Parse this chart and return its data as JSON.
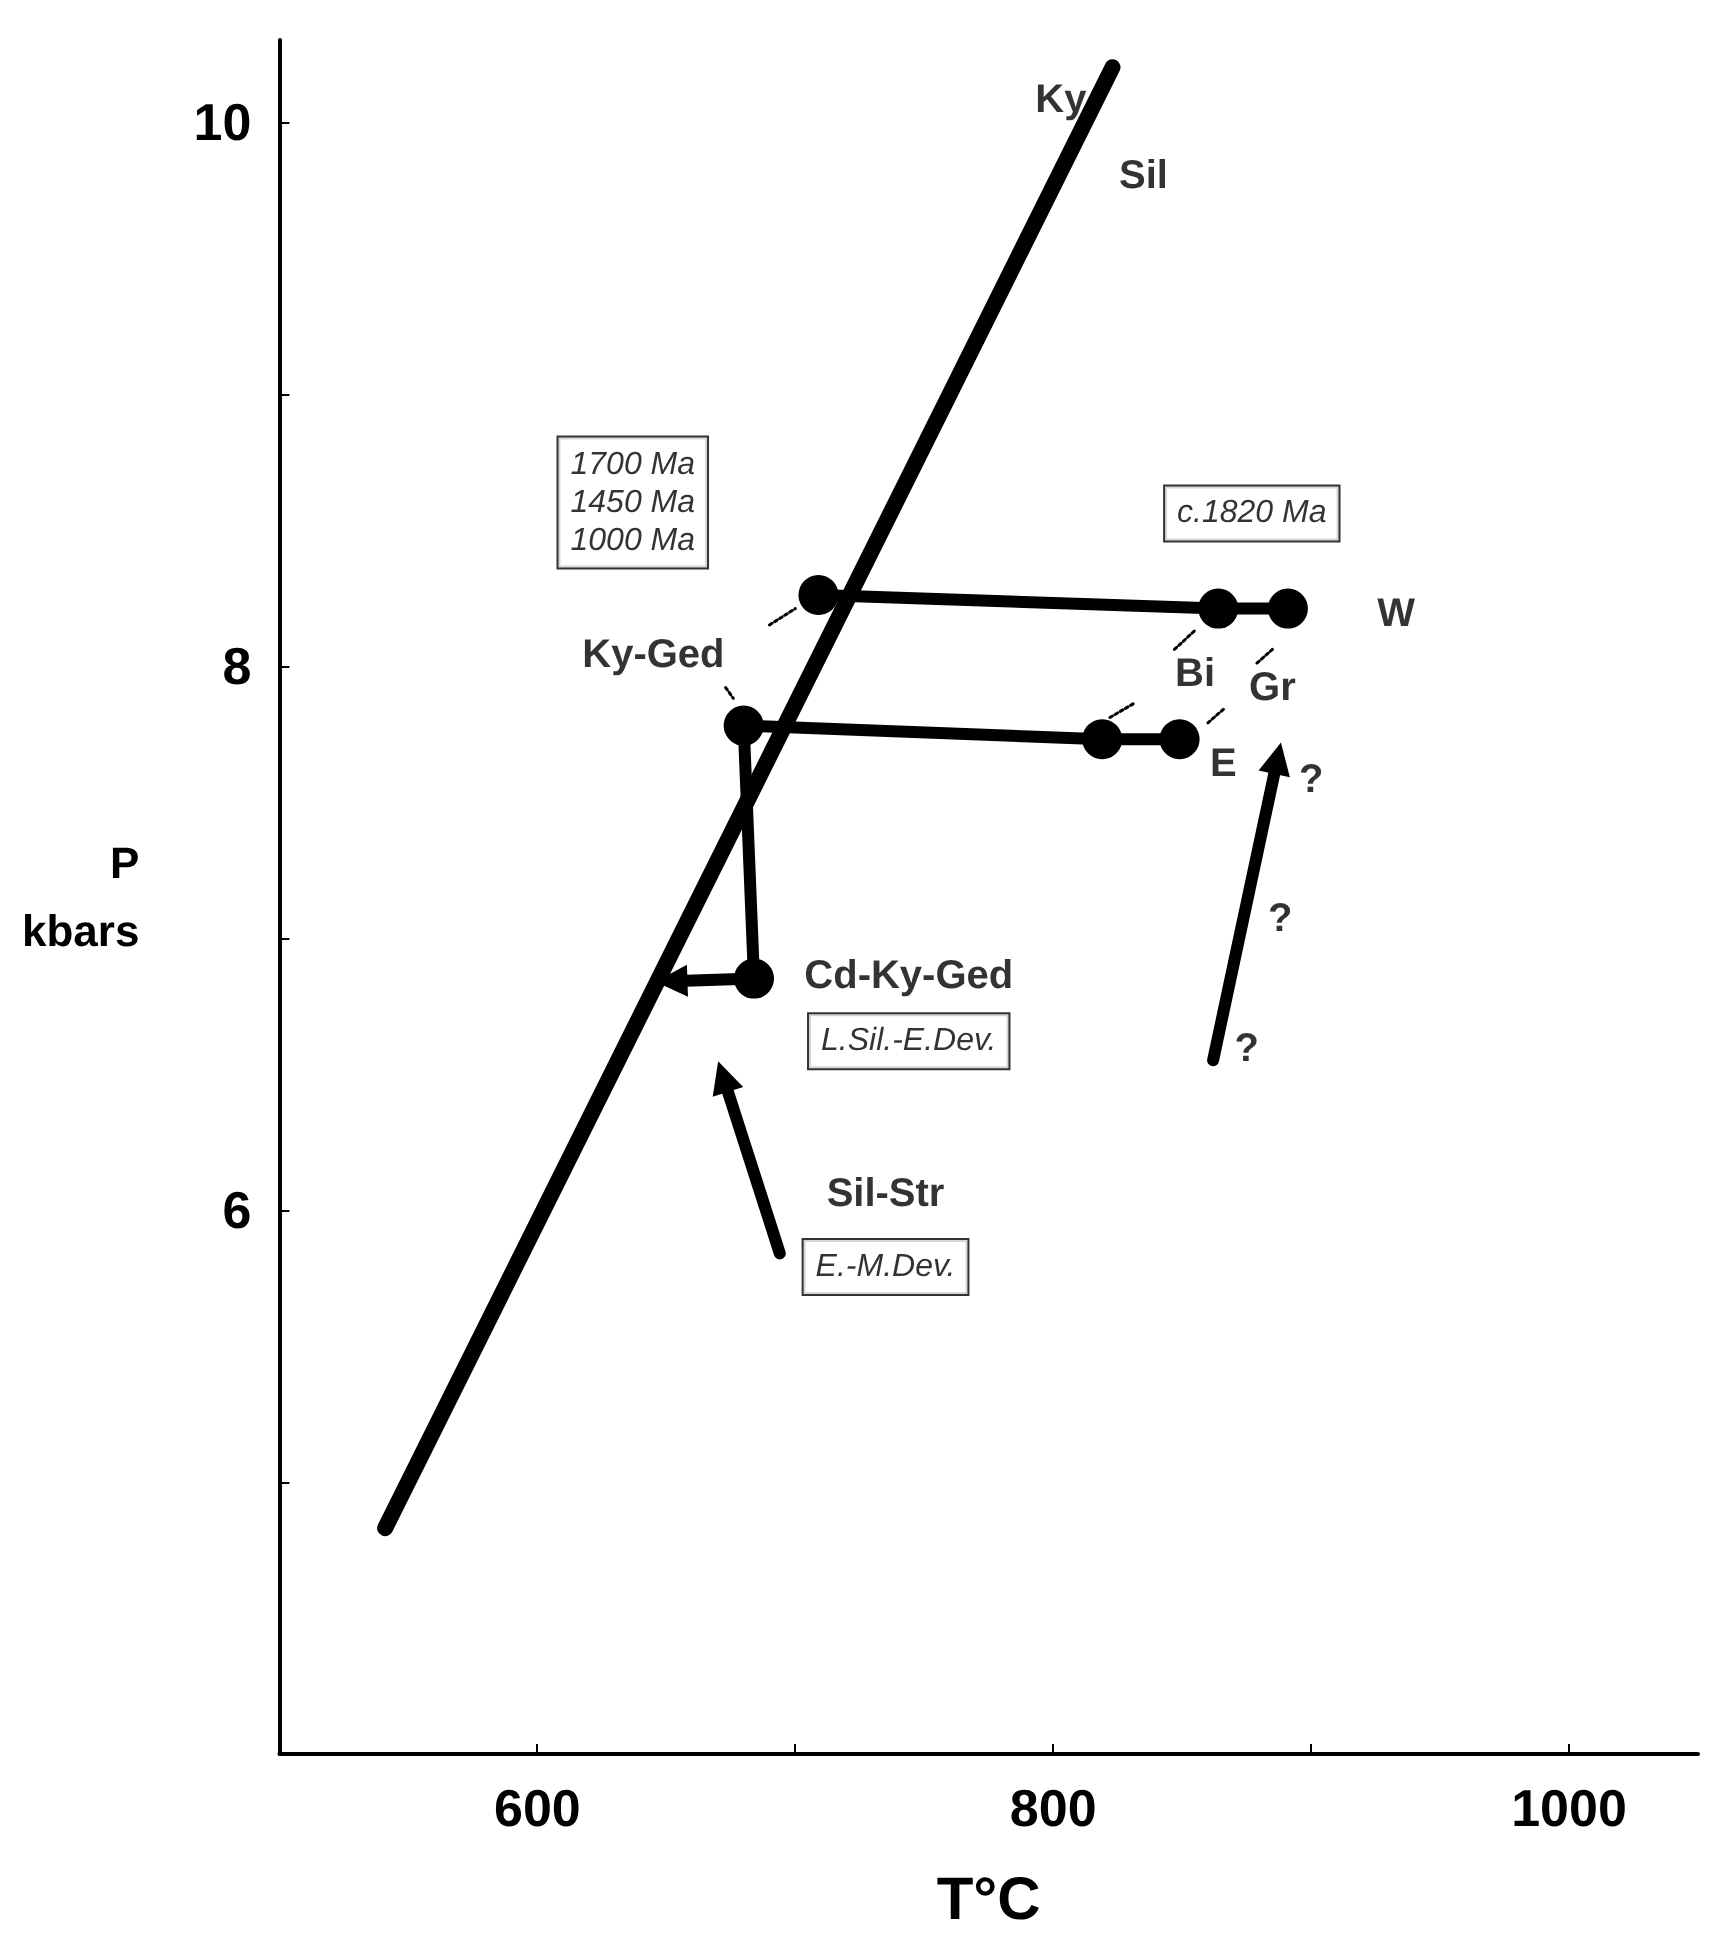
{
  "chart_data": {
    "type": "line",
    "xlabel": "T°C",
    "ylabel": "P\nkbars",
    "xlim": [
      500,
      1050
    ],
    "ylim": [
      4,
      10.3
    ],
    "xticks": [
      600,
      {
        "value": 700,
        "label": null
      },
      800,
      {
        "value": 900,
        "label": null
      },
      1000
    ],
    "yticks": [
      {
        "value": 5,
        "label": null
      },
      6,
      {
        "value": 7,
        "label": null
      },
      8,
      {
        "value": 9,
        "label": null
      },
      10
    ],
    "grid": false,
    "series": [
      {
        "color": "#000000",
        "x": [
          541,
          823
        ],
        "values": [
          4.83,
          10.2
        ],
        "marker": "none",
        "line_style": "solid"
      },
      {
        "color": "#000000",
        "x": [
          709,
          864,
          891
        ],
        "values": [
          8.26,
          8.21,
          8.21
        ],
        "marker": "circle",
        "line_style": "solid"
      },
      {
        "color": "#000000",
        "x": [
          684,
          680,
          819,
          849
        ],
        "values": [
          6.85,
          7.78,
          7.73,
          7.73
        ],
        "marker": "circle",
        "line_style": "solid"
      },
      {
        "color": "#000000",
        "x": [
          684,
          652
        ],
        "values": [
          6.85,
          6.84
        ],
        "marker": "triangle",
        "line_style": "solid"
      },
      {
        "color": "#000000",
        "x": [
          862,
          887
        ],
        "values": [
          6.55,
          7.66
        ],
        "marker": "triangle",
        "line_style": "solid"
      },
      {
        "color": "#000000",
        "x": [
          694,
          672
        ],
        "values": [
          5.84,
          6.49
        ],
        "marker": "triangle",
        "line_style": "solid"
      },
      {
        "color": "#000000",
        "x": [
          690,
          700
        ],
        "values": [
          8.15,
          8.21
        ],
        "marker": "none",
        "line_style": "dotted"
      },
      {
        "color": "#000000",
        "x": [
          673,
          676
        ],
        "values": [
          7.92,
          7.88
        ],
        "marker": "none",
        "line_style": "dotted"
      },
      {
        "color": "#000000",
        "x": [
          847,
          855
        ],
        "values": [
          8.06,
          8.13
        ],
        "marker": "none",
        "line_style": "dotted"
      },
      {
        "color": "#000000",
        "x": [
          831,
          822
        ],
        "values": [
          7.86,
          7.81
        ],
        "marker": "none",
        "line_style": "dotted"
      },
      {
        "color": "#000000",
        "x": [
          879,
          885
        ],
        "values": [
          8.01,
          8.06
        ],
        "marker": "none",
        "line_style": "dotted"
      },
      {
        "color": "#000000",
        "x": [
          866,
          860
        ],
        "values": [
          7.84,
          7.79
        ],
        "marker": "none",
        "line_style": "dotted"
      }
    ],
    "annotations": [
      "Ky",
      "Sil",
      "1700 Ma\n1450 Ma\n1000 Ma",
      "c.1820 Ma",
      "Ky-Ged",
      "Bi",
      "Gr",
      "W",
      "E",
      "?",
      "?",
      "?",
      "Cd-Ky-Ged",
      "L.Sil.-E.Dev.",
      "Sil-Str",
      "E.-M.Dev."
    ]
  }
}
